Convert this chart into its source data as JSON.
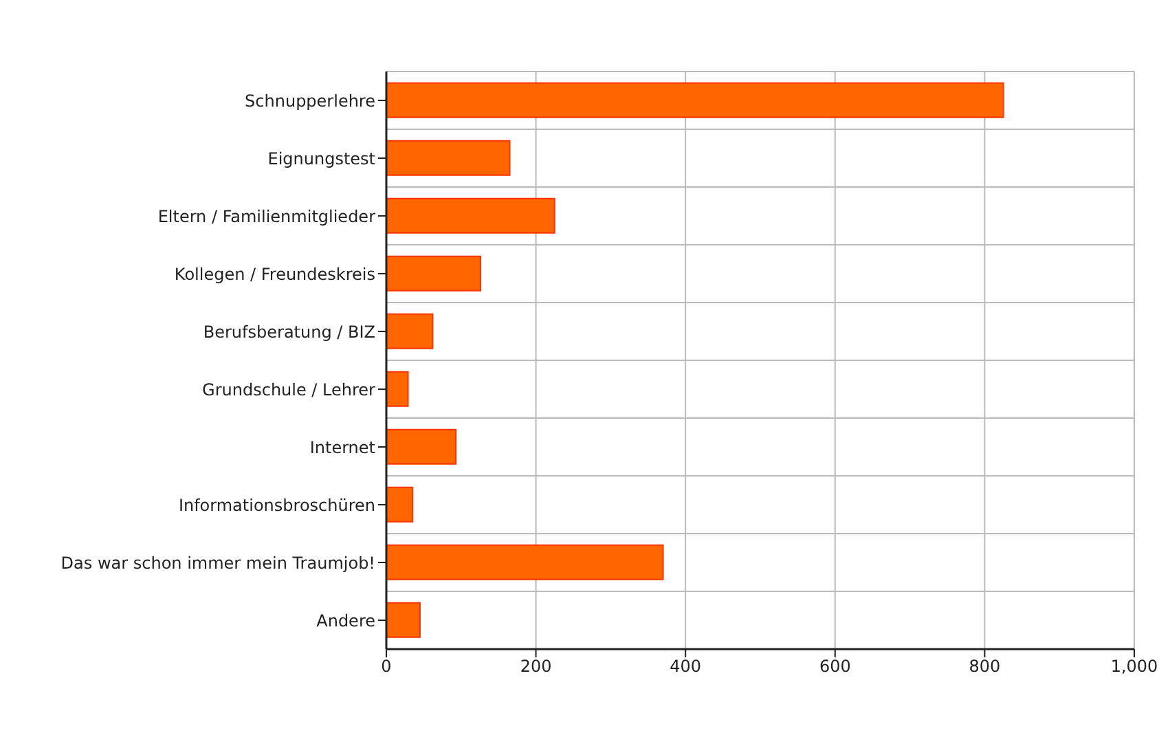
{
  "chart_data": {
    "type": "bar",
    "orientation": "horizontal",
    "categories": [
      "Schnupperlehre",
      "Eignungstest",
      "Eltern / Familienmitglieder",
      "Kollegen / Freundeskreis",
      "Berufsberatung / BIZ",
      "Grundschule / Lehrer",
      "Internet",
      "Informationsbroschüren",
      "Das war schon immer mein Traumjob!",
      "Andere"
    ],
    "values": [
      825,
      165,
      225,
      126,
      62,
      29,
      93,
      35,
      370,
      45
    ],
    "color": "#ff6600",
    "xlim": [
      0,
      1000
    ],
    "xticks": [
      0,
      200,
      400,
      600,
      800,
      {
        "value": 1000,
        "label": "1,000"
      }
    ],
    "grid": true
  }
}
